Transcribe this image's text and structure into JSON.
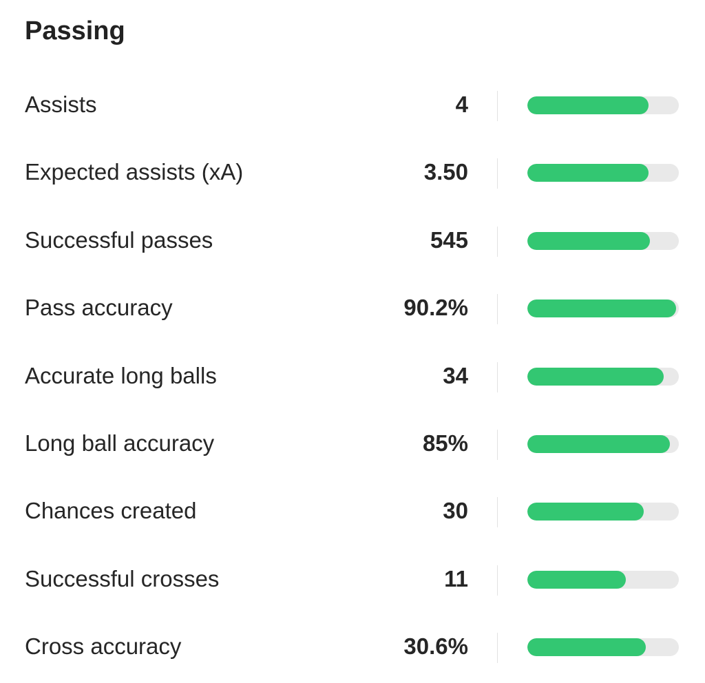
{
  "section": {
    "title": "Passing"
  },
  "colors": {
    "bar_fill": "#33c772",
    "bar_track": "#e9e9e9"
  },
  "stats": [
    {
      "label": "Assists",
      "value": "4",
      "percentile": 0.8
    },
    {
      "label": "Expected assists (xA)",
      "value": "3.50",
      "percentile": 0.8
    },
    {
      "label": "Successful passes",
      "value": "545",
      "percentile": 0.81
    },
    {
      "label": "Pass accuracy",
      "value": "90.2%",
      "percentile": 0.98
    },
    {
      "label": "Accurate long balls",
      "value": "34",
      "percentile": 0.9
    },
    {
      "label": "Long ball accuracy",
      "value": "85%",
      "percentile": 0.94
    },
    {
      "label": "Chances created",
      "value": "30",
      "percentile": 0.77
    },
    {
      "label": "Successful crosses",
      "value": "11",
      "percentile": 0.65
    },
    {
      "label": "Cross accuracy",
      "value": "30.6%",
      "percentile": 0.78
    }
  ]
}
